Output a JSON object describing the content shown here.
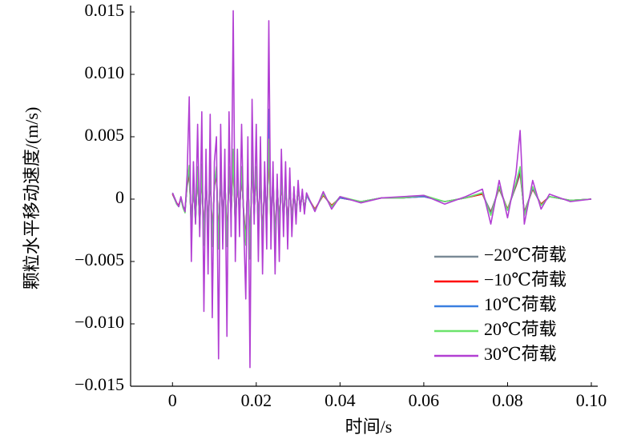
{
  "chart_data": {
    "type": "line",
    "x_label": "时间/s",
    "y_label": "颗粒水平移动速度/(m/s)",
    "xlim": [
      -0.01,
      0.1
    ],
    "xticks": [
      0,
      0.02,
      0.04,
      0.06,
      0.08,
      {
        "value": 0.1,
        "label": "0.10"
      }
    ],
    "ylim": [
      -0.015,
      0.015
    ],
    "yticks": [
      {
        "value": -0.015,
        "label": "−0.015"
      },
      {
        "value": -0.01,
        "label": "−0.010"
      },
      {
        "value": -0.005,
        "label": "−0.005"
      },
      0,
      {
        "value": 0.005,
        "label": "0.005"
      },
      {
        "value": 0.01,
        "label": "0.010"
      },
      {
        "value": 0.015,
        "label": "0.015"
      }
    ],
    "legend": "lower right",
    "x": [
      0,
      0.0005,
      0.001,
      0.0015,
      0.002,
      0.0025,
      0.003,
      0.0035,
      0.004,
      0.0045,
      0.005,
      0.0055,
      0.006,
      0.0065,
      0.007,
      0.0075,
      0.008,
      0.0085,
      0.009,
      0.0095,
      0.01,
      0.0105,
      0.011,
      0.0115,
      0.012,
      0.0125,
      0.013,
      0.0135,
      0.014,
      0.0145,
      0.015,
      0.0155,
      0.016,
      0.0165,
      0.017,
      0.0175,
      0.018,
      0.0185,
      0.019,
      0.0195,
      0.02,
      0.0205,
      0.021,
      0.0215,
      0.022,
      0.0225,
      0.023,
      0.0235,
      0.024,
      0.0245,
      0.025,
      0.0255,
      0.026,
      0.0265,
      0.027,
      0.0275,
      0.028,
      0.0285,
      0.029,
      0.0295,
      0.03,
      0.0305,
      0.031,
      0.0315,
      0.032,
      0.034,
      0.036,
      0.038,
      0.04,
      0.045,
      0.05,
      0.055,
      0.06,
      0.065,
      0.07,
      0.074,
      0.076,
      0.078,
      0.08,
      0.082,
      0.083,
      0.084,
      0.086,
      0.088,
      0.09,
      0.095,
      0.1
    ],
    "series": [
      {
        "name": "−20℃荷载",
        "color": "#7a8a96",
        "values": [
          0.0004,
          0,
          -0.0004,
          -0.0005,
          0,
          -0.0006,
          -0.0008,
          0.001,
          0.002,
          -0.002,
          0.001,
          -0.0015,
          0.002,
          -0.002,
          0.002,
          -0.003,
          0.0015,
          -0.002,
          0.002,
          -0.003,
          0.001,
          0.002,
          -0.003,
          0.002,
          -0.0015,
          0.0015,
          -0.003,
          0.002,
          -0.001,
          0.003,
          -0.002,
          0.0015,
          -0.001,
          0.002,
          -0.001,
          -0.003,
          0.002,
          -0.004,
          0.003,
          -0.001,
          0.002,
          -0.002,
          0.002,
          -0.003,
          0.0015,
          -0.002,
          0.004,
          -0.002,
          0.0015,
          -0.003,
          0.001,
          -0.002,
          0.0015,
          -0.0015,
          0.001,
          -0.002,
          0.001,
          -0.0015,
          0.0005,
          -0.001,
          0.0008,
          -0.0006,
          0.0004,
          -0.0008,
          0.0003,
          -0.0008,
          0.0003,
          -0.0005,
          0.0001,
          -0.0002,
          0.0001,
          0.0001,
          0.0002,
          -0.0002,
          0.0001,
          0.0004,
          -0.001,
          0.0008,
          -0.0008,
          0.001,
          0.002,
          -0.001,
          0.0008,
          -0.0004,
          0.0002,
          -0.0001,
          0
        ]
      },
      {
        "name": "−10℃荷载",
        "color": "#ff0000",
        "values": [
          0.0004,
          0.0001,
          -0.0003,
          -0.0005,
          0.0001,
          -0.0006,
          -0.0009,
          0.0012,
          0.0022,
          -0.0022,
          0.0012,
          -0.0016,
          0.0022,
          -0.0021,
          0.0024,
          -0.0032,
          0.0016,
          -0.0022,
          0.0021,
          -0.0033,
          0.0011,
          0.0022,
          -0.0034,
          0.0021,
          -0.0016,
          0.0017,
          -0.0032,
          0.0022,
          -0.0012,
          0.0034,
          -0.0022,
          0.0016,
          -0.0011,
          0.0022,
          -0.0012,
          -0.0032,
          0.0021,
          -0.0042,
          0.0032,
          -0.0011,
          0.0022,
          -0.0022,
          0.0021,
          -0.0032,
          0.0016,
          -0.0021,
          0.0044,
          -0.0022,
          0.0016,
          -0.0032,
          0.0011,
          -0.0021,
          0.0016,
          -0.0016,
          0.0011,
          -0.0021,
          0.0011,
          -0.0016,
          0.0006,
          -0.0011,
          0.0009,
          -0.0007,
          0.0004,
          -0.0008,
          0.0003,
          -0.0008,
          0.0003,
          -0.0005,
          0.0001,
          -0.0002,
          0.0001,
          0.0001,
          0.0002,
          -0.0002,
          0.0001,
          0.0004,
          -0.0011,
          0.0009,
          -0.0008,
          0.0011,
          0.0022,
          -0.0011,
          0.0008,
          -0.0004,
          0.0002,
          -0.0001,
          0
        ]
      },
      {
        "name": "10℃荷载",
        "color": "#3a7fe0",
        "values": [
          0.0005,
          0.0001,
          -0.0004,
          -0.0006,
          0.0001,
          -0.0006,
          -0.001,
          0.0013,
          0.0025,
          -0.0024,
          0.0013,
          -0.0018,
          0.0024,
          -0.0023,
          0.0026,
          -0.0035,
          0.0018,
          -0.0024,
          0.0023,
          -0.0036,
          0.0012,
          0.0024,
          -0.0038,
          0.0023,
          -0.0018,
          0.0019,
          -0.0036,
          0.0024,
          -0.0013,
          0.0038,
          -0.0024,
          0.0018,
          -0.0012,
          0.0024,
          -0.0013,
          -0.0035,
          0.0023,
          -0.0046,
          0.0035,
          -0.0012,
          0.0024,
          -0.0024,
          0.0023,
          -0.0035,
          0.0018,
          -0.0023,
          0.0072,
          -0.0024,
          0.0018,
          -0.0035,
          0.0012,
          -0.0023,
          0.0018,
          -0.0018,
          0.0012,
          -0.0023,
          0.0012,
          -0.0018,
          0.0006,
          -0.0012,
          0.001,
          -0.0007,
          0.0005,
          -0.0009,
          0.0003,
          -0.0009,
          0.0004,
          -0.0006,
          0.0001,
          -0.0002,
          0.0001,
          0.0001,
          0.0002,
          -0.0002,
          0.0001,
          0.0005,
          -0.0012,
          0.001,
          -0.0009,
          0.0012,
          0.0024,
          -0.0012,
          0.0009,
          -0.0005,
          0.0002,
          -0.0001,
          0
        ]
      },
      {
        "name": "20℃荷载",
        "color": "#6be36b",
        "values": [
          0.0005,
          0.0001,
          -0.0004,
          -0.0006,
          0.0001,
          -0.0007,
          -0.0011,
          0.0014,
          0.0027,
          -0.0026,
          0.0014,
          -0.0019,
          0.0026,
          -0.0025,
          0.0028,
          -0.0037,
          0.0019,
          -0.0026,
          0.0025,
          -0.0038,
          0.0013,
          0.0026,
          -0.004,
          0.0025,
          -0.0019,
          0.002,
          -0.0038,
          0.0026,
          -0.0014,
          0.004,
          -0.0026,
          0.0019,
          -0.0013,
          0.0026,
          -0.0014,
          -0.0037,
          0.0025,
          -0.0048,
          0.0037,
          -0.0013,
          0.0026,
          -0.0026,
          0.0025,
          -0.0037,
          0.0019,
          -0.0025,
          0.0048,
          -0.0026,
          0.0019,
          -0.0037,
          0.0013,
          -0.0025,
          0.0019,
          -0.0019,
          0.0013,
          -0.0025,
          0.0013,
          -0.0019,
          0.0007,
          -0.0013,
          0.001,
          -0.0008,
          0.0005,
          -0.0009,
          0.0004,
          -0.0009,
          0.0004,
          -0.0006,
          0.0002,
          -0.0002,
          0.0001,
          0.0001,
          0.0003,
          -0.0002,
          0.0001,
          0.0005,
          -0.0013,
          0.001,
          -0.0009,
          0.0013,
          0.0026,
          -0.0013,
          0.001,
          -0.0005,
          0.0002,
          -0.0001,
          0
        ]
      },
      {
        "name": "30℃荷载",
        "color": "#b23fd3",
        "values": [
          0.0005,
          0.0001,
          -0.0003,
          -0.0006,
          0.0002,
          -0.0005,
          -0.001,
          0.002,
          0.0082,
          -0.005,
          0.003,
          -0.002,
          0.006,
          -0.003,
          0.007,
          -0.009,
          0.004,
          -0.006,
          0.0068,
          -0.0095,
          0.003,
          0.005,
          -0.0128,
          0.006,
          -0.004,
          0.004,
          -0.011,
          0.007,
          -0.003,
          0.0151,
          -0.005,
          0.004,
          -0.003,
          0.006,
          -0.002,
          -0.008,
          0.005,
          -0.0135,
          0.008,
          -0.002,
          0.006,
          -0.005,
          0.005,
          -0.006,
          0.003,
          -0.004,
          0.0143,
          -0.004,
          0.003,
          -0.006,
          0.002,
          -0.005,
          0.004,
          -0.003,
          0.003,
          -0.004,
          0.0025,
          -0.003,
          0.001,
          -0.002,
          0.0015,
          -0.001,
          0.0008,
          -0.0012,
          0.0005,
          -0.001,
          0.0006,
          -0.0008,
          0.0002,
          -0.0003,
          0.0001,
          0.0002,
          0.0003,
          -0.0004,
          0.0002,
          0.0008,
          -0.002,
          0.0015,
          -0.0015,
          0.002,
          0.0055,
          -0.002,
          0.0015,
          -0.0008,
          0.0004,
          -0.0002,
          0
        ]
      }
    ]
  }
}
